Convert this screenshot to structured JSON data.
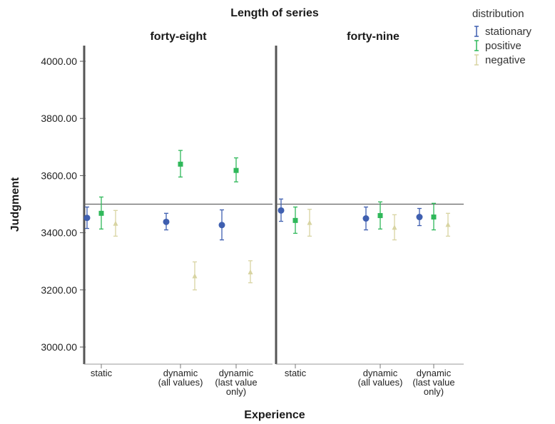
{
  "chart_data": {
    "type": "scatter",
    "title": "Length of series",
    "xlabel": "Experience",
    "ylabel": "Judgment",
    "ylim": [
      2970,
      4055
    ],
    "yticks": [
      3000,
      3200,
      3400,
      3600,
      3800,
      4000
    ],
    "ytick_labels": [
      "3000.00",
      "3200.00",
      "3400.00",
      "3600.00",
      "3800.00",
      "4000.00"
    ],
    "reference_line": 3500,
    "categories": [
      [
        "static"
      ],
      [
        "dynamic",
        "(all values)"
      ],
      [
        "dynamic",
        "(last value",
        "only)"
      ]
    ],
    "legend": {
      "title": "distribution",
      "position": "top-right",
      "entries": [
        {
          "name": "stationary",
          "color": "#3f5fb0"
        },
        {
          "name": "positive",
          "color": "#2fb85a"
        },
        {
          "name": "negative",
          "color": "#d8d4a2"
        }
      ]
    },
    "panels": [
      {
        "label": "forty-eight",
        "series": [
          {
            "name": "stationary",
            "marker": "circle",
            "values": [
              3452,
              3438,
              3427
            ],
            "lower": [
              3415,
              3410,
              3375
            ],
            "upper": [
              3490,
              3468,
              3480
            ]
          },
          {
            "name": "positive",
            "marker": "square",
            "values": [
              3468,
              3640,
              3618
            ],
            "lower": [
              3413,
              3595,
              3578
            ],
            "upper": [
              3525,
              3688,
              3662
            ]
          },
          {
            "name": "negative",
            "marker": "triangle",
            "values": [
              3432,
              3248,
              3262
            ],
            "lower": [
              3388,
              3200,
              3225
            ],
            "upper": [
              3478,
              3298,
              3302
            ]
          }
        ]
      },
      {
        "label": "forty-nine",
        "series": [
          {
            "name": "stationary",
            "marker": "circle",
            "values": [
              3478,
              3450,
              3455
            ],
            "lower": [
              3440,
              3410,
              3425
            ],
            "upper": [
              3518,
              3490,
              3485
            ]
          },
          {
            "name": "positive",
            "marker": "square",
            "values": [
              3443,
              3460,
              3455
            ],
            "lower": [
              3398,
              3413,
              3410
            ],
            "upper": [
              3490,
              3508,
              3503
            ]
          },
          {
            "name": "negative",
            "marker": "triangle",
            "values": [
              3435,
              3418,
              3428
            ],
            "lower": [
              3388,
              3375,
              3388
            ],
            "upper": [
              3482,
              3463,
              3468
            ]
          }
        ]
      }
    ]
  }
}
